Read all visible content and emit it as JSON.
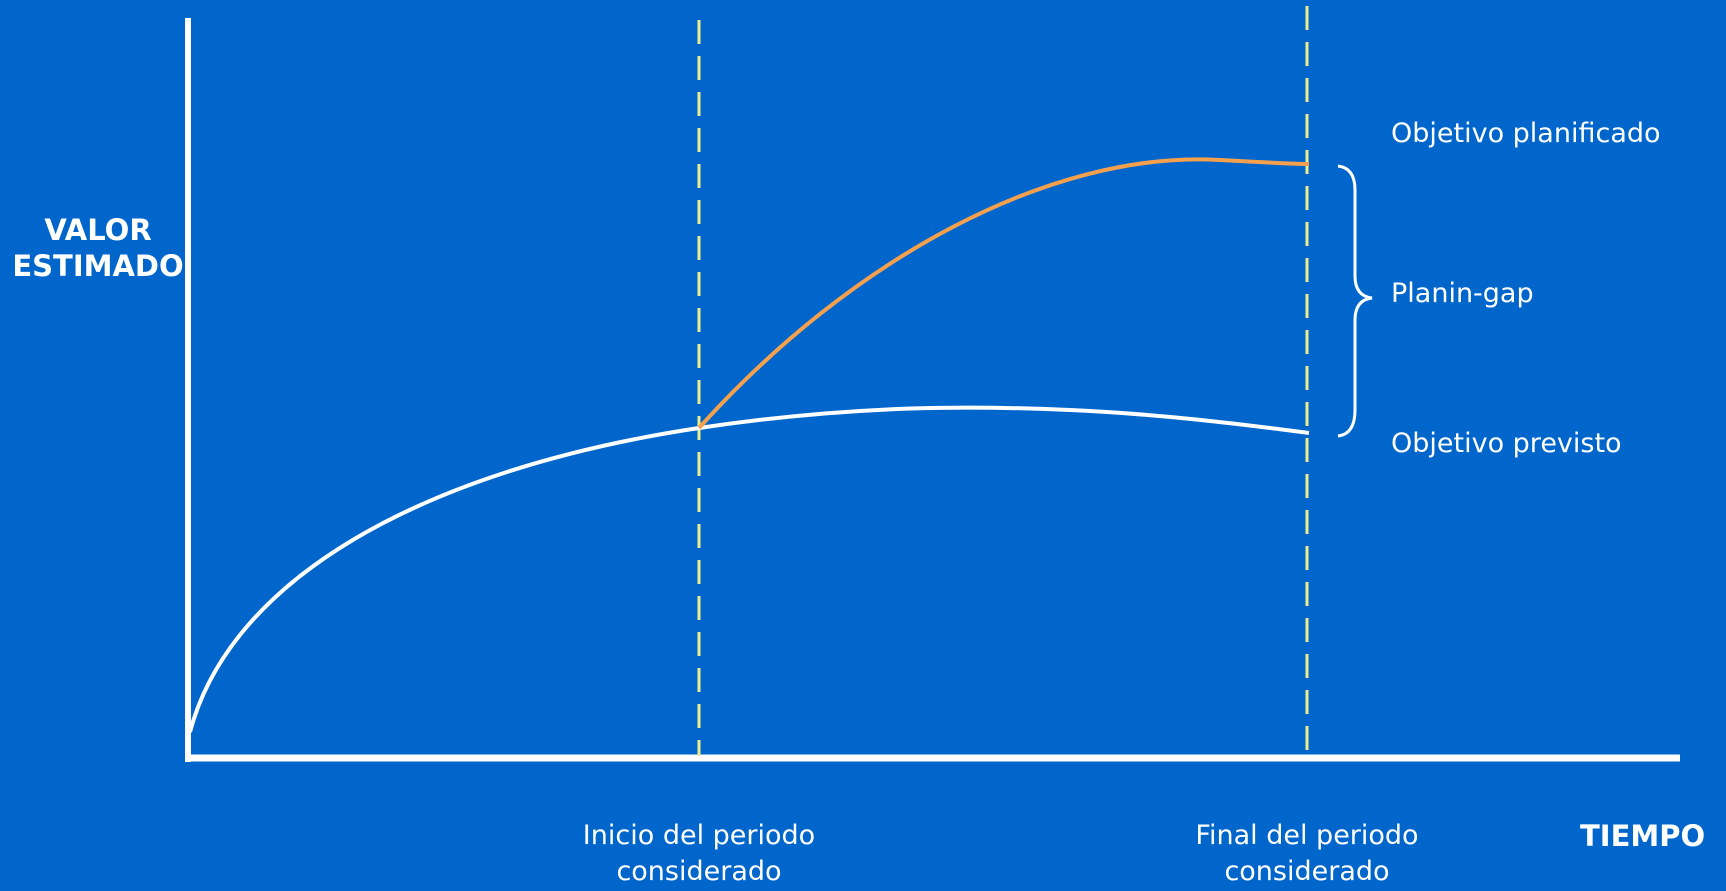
{
  "y_axis_label": {
    "line1": "VALOR",
    "line2": "ESTIMADO"
  },
  "x_axis_label": "TIEMPO",
  "period_start": {
    "line1": "Inicio del periodo",
    "line2": "considerado"
  },
  "period_end": {
    "line1": "Final del periodo",
    "line2": "considerado"
  },
  "legend": {
    "planned": "Objetivo planificado",
    "gap": "Planin-gap",
    "forecast": "Objetivo previsto"
  },
  "colors": {
    "background": "#0066cc",
    "axes": "#ffffff",
    "forecast_curve": "#ffffff",
    "planned_curve": "#f4a04c",
    "period_markers": "#f0ec8c"
  }
}
